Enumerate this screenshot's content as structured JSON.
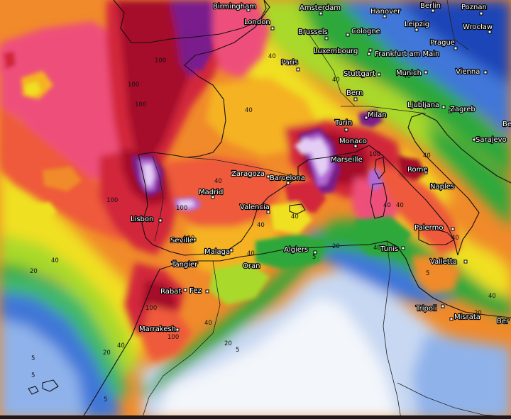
{
  "colors": {
    "lightest": "#f3f6fb",
    "pale_blue": "#c8d8f2",
    "light_blue": "#8fb2ea",
    "blue": "#3f77d8",
    "deep_blue": "#1f45b8",
    "cyan_green": "#3fb86a",
    "green": "#2fa83a",
    "lime": "#a9d92a",
    "yellow": "#f0e020",
    "yellow_orange": "#f5b224",
    "orange": "#f08a2a",
    "red_orange": "#ee5a3a",
    "pink": "#ee4f7a",
    "red": "#d2263a",
    "dark_red": "#a5102a",
    "purple": "#7a1c8c",
    "violet": "#b36ad6",
    "lavender": "#e4cdf4",
    "coast": "#111111"
  },
  "cities": [
    {
      "name": "Birmingham"
    },
    {
      "name": "Amsterdam"
    },
    {
      "name": "Hanover"
    },
    {
      "name": "Berlin"
    },
    {
      "name": "Poznan"
    },
    {
      "name": "London"
    },
    {
      "name": "Brussels"
    },
    {
      "name": "Cologne"
    },
    {
      "name": "Leipzig"
    },
    {
      "name": "Wrocław"
    },
    {
      "name": "Prague"
    },
    {
      "name": "Luxembourg"
    },
    {
      "name": "Frankfurt am Main"
    },
    {
      "name": "Paris"
    },
    {
      "name": "Stuttgart"
    },
    {
      "name": "Munich"
    },
    {
      "name": "Vienna"
    },
    {
      "name": "Bern"
    },
    {
      "name": "Ljubljana"
    },
    {
      "name": "Zagreb"
    },
    {
      "name": "Turin"
    },
    {
      "name": "Milan"
    },
    {
      "name": "Monaco"
    },
    {
      "name": "Marseille"
    },
    {
      "name": "Sarajevo"
    },
    {
      "name": "Zaragoza"
    },
    {
      "name": "Barcelona"
    },
    {
      "name": "Rome"
    },
    {
      "name": "Madrid"
    },
    {
      "name": "Naples"
    },
    {
      "name": "Valencia"
    },
    {
      "name": "Lisbon"
    },
    {
      "name": "Palermo"
    },
    {
      "name": "Seville"
    },
    {
      "name": "Malaga"
    },
    {
      "name": "Algiers"
    },
    {
      "name": "Tunis"
    },
    {
      "name": "Tangier"
    },
    {
      "name": "Oran"
    },
    {
      "name": "Valletta"
    },
    {
      "name": "Rabat"
    },
    {
      "name": "Fez"
    },
    {
      "name": "Tripoli"
    },
    {
      "name": "Misrata"
    },
    {
      "name": "Marrakesh"
    },
    {
      "name": "Be"
    },
    {
      "name": "Ber"
    }
  ],
  "contour_labels": [
    {
      "text": "100"
    },
    {
      "text": "100"
    },
    {
      "text": "100"
    },
    {
      "text": "100"
    },
    {
      "text": "100"
    },
    {
      "text": "100"
    },
    {
      "text": "100"
    },
    {
      "text": "100"
    },
    {
      "text": "100"
    },
    {
      "text": "40"
    },
    {
      "text": "40"
    },
    {
      "text": "40"
    },
    {
      "text": "40"
    },
    {
      "text": "40"
    },
    {
      "text": "40"
    },
    {
      "text": "40"
    },
    {
      "text": "40"
    },
    {
      "text": "40"
    },
    {
      "text": "40"
    },
    {
      "text": "40"
    },
    {
      "text": "40"
    },
    {
      "text": "40"
    },
    {
      "text": "40"
    },
    {
      "text": "40"
    },
    {
      "text": "40"
    },
    {
      "text": "40"
    },
    {
      "text": "20"
    },
    {
      "text": "20"
    },
    {
      "text": "20"
    },
    {
      "text": "20"
    },
    {
      "text": "20"
    },
    {
      "text": "5"
    },
    {
      "text": "5"
    },
    {
      "text": "5"
    },
    {
      "text": "5"
    },
    {
      "text": "5"
    },
    {
      "text": "5"
    }
  ]
}
